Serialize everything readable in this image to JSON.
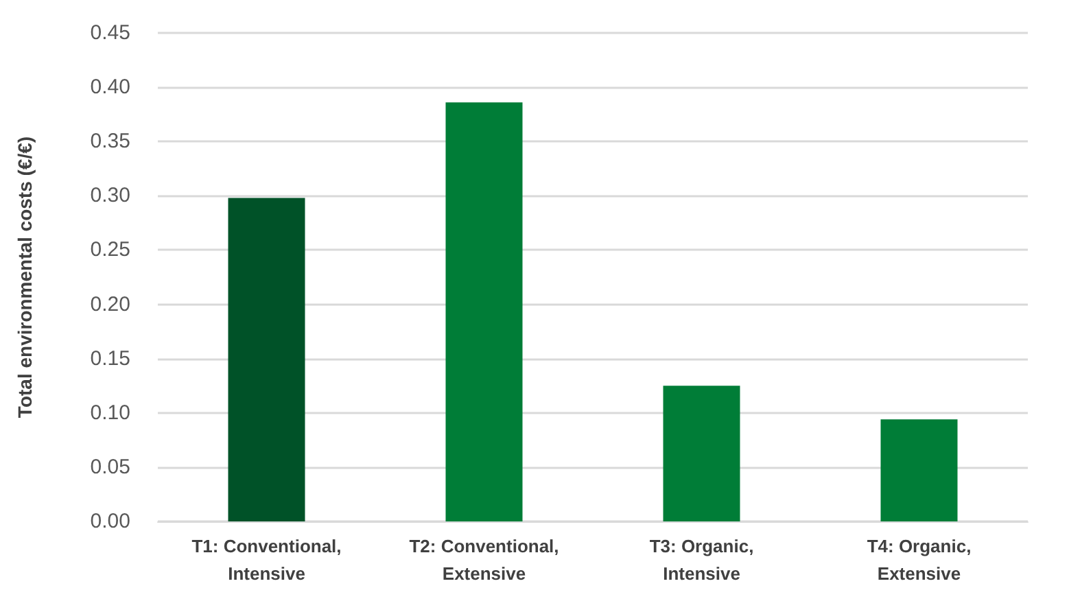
{
  "chart_data": {
    "type": "bar",
    "ylabel": "Total environmental costs (€/€)",
    "categories": [
      "T1: Conventional,\nIntensive",
      "T2: Conventional,\nExtensive",
      "T3: Organic,\nIntensive",
      "T4: Organic,\nExtensive"
    ],
    "values": [
      0.298,
      0.386,
      0.125,
      0.094
    ],
    "colors": [
      "#005228",
      "#007d37",
      "#007d37",
      "#007d37"
    ],
    "ylim": [
      0,
      0.45
    ],
    "yticks": [
      {
        "value": 0,
        "label": "0.00"
      },
      0.05,
      {
        "value": 0.1,
        "label": "0.10"
      },
      0.15,
      {
        "value": 0.2,
        "label": "0.20"
      },
      0.25,
      {
        "value": 0.3,
        "label": "0.30"
      },
      0.35,
      {
        "value": 0.4,
        "label": "0.40"
      },
      0.45
    ],
    "grid": "y"
  }
}
